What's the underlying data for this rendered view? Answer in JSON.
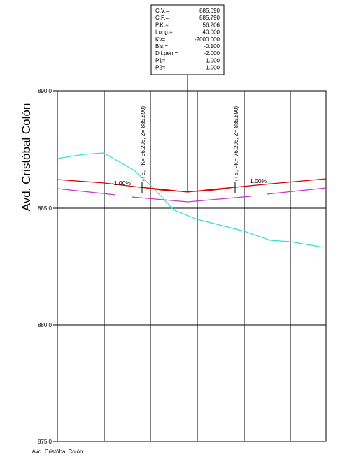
{
  "info_box": {
    "rows": [
      {
        "label": "C.V.=",
        "value": "885.690"
      },
      {
        "label": "C.P.=",
        "value": "885.790"
      },
      {
        "label": "P.K.=",
        "value": "56.206"
      },
      {
        "label": "Long.=",
        "value": "40.000"
      },
      {
        "label": "Kv=",
        "value": "-2000.000"
      },
      {
        "label": "Bis.=",
        "value": "-0.100"
      },
      {
        "label": "Dif.pen.=",
        "value": "-2.000"
      },
      {
        "label": "P1=",
        "value": "-1.000"
      },
      {
        "label": "P2=",
        "value": "1.000"
      }
    ]
  },
  "profile": {
    "title": "Avd. Cristóbal Colón",
    "footer_label": "Avd. Cristóbal Colón",
    "y_ticks": [
      "890.0",
      "885.0",
      "880.0",
      "875.0"
    ],
    "annotations": {
      "te": "(TE, PK= 36.206, Z= 885.890)",
      "ts": "(TS, PK= 76.206, Z= 885.890)",
      "slope_left": "-1.00%",
      "slope_right": "1.00%"
    }
  },
  "colors": {
    "grade_line": "#dd0000",
    "terrain_line": "#33dddd",
    "parallel_line": "#cc33cc",
    "grid": "#000000"
  }
}
